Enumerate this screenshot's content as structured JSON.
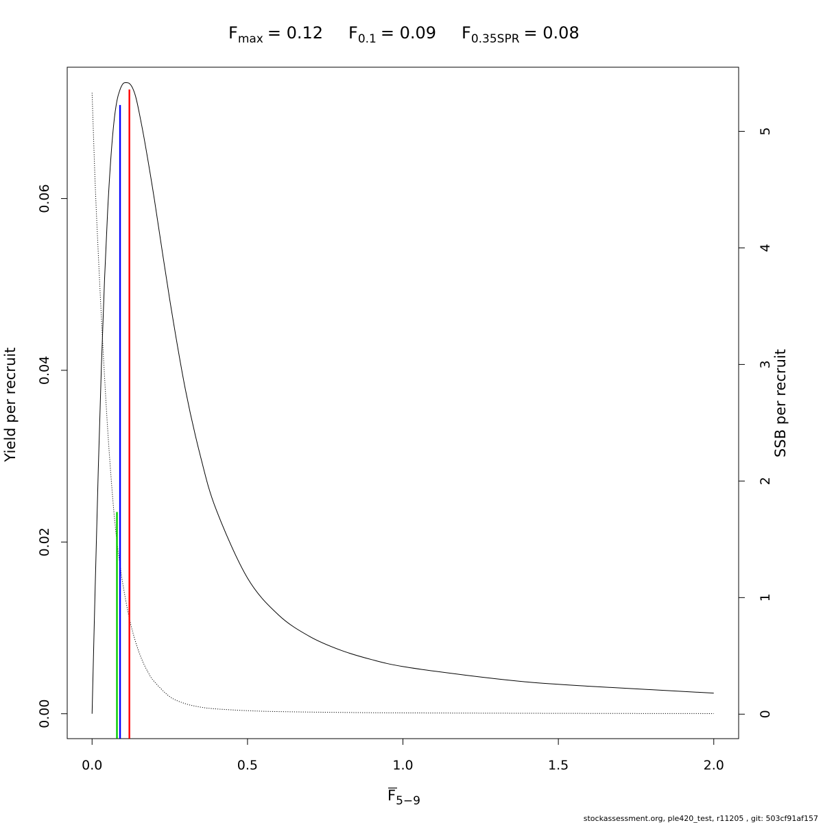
{
  "chart_data": {
    "type": "line",
    "title": {
      "fmax": {
        "base": "F",
        "sub": "max",
        "value": "= 0.12"
      },
      "f01": {
        "base": "F",
        "sub": "0.1",
        "value": "= 0.09"
      },
      "fspr": {
        "base": "F",
        "sub": "0.35SPR",
        "value": "= 0.08"
      }
    },
    "xlabel": {
      "base": "F",
      "sub": "5−9"
    },
    "ylabel_left": "Yield per recruit",
    "ylabel_right": "SSB per recruit",
    "xlim": [
      -0.08,
      2.08
    ],
    "ylim_left": [
      -0.0029,
      0.0753
    ],
    "ylim_right": [
      -0.21,
      5.55
    ],
    "x_ticks": [
      {
        "value": 0.0,
        "label": "0.0"
      },
      {
        "value": 0.5,
        "label": "0.5"
      },
      {
        "value": 1.0,
        "label": "1.0"
      },
      {
        "value": 1.5,
        "label": "1.5"
      },
      {
        "value": 2.0,
        "label": "2.0"
      }
    ],
    "y_left_ticks": [
      {
        "value": 0.0,
        "label": "0.00"
      },
      {
        "value": 0.02,
        "label": "0.02"
      },
      {
        "value": 0.04,
        "label": "0.04"
      },
      {
        "value": 0.06,
        "label": "0.06"
      }
    ],
    "y_right_ticks": [
      {
        "value": 0,
        "label": "0"
      },
      {
        "value": 1,
        "label": "1"
      },
      {
        "value": 2,
        "label": "2"
      },
      {
        "value": 3,
        "label": "3"
      },
      {
        "value": 4,
        "label": "4"
      },
      {
        "value": 5,
        "label": "5"
      }
    ],
    "series": [
      {
        "axis": "left",
        "style": "solid",
        "color": "#000000",
        "x": [
          0,
          0.01,
          0.02,
          0.03,
          0.04,
          0.05,
          0.06,
          0.07,
          0.08,
          0.09,
          0.1,
          0.11,
          0.12,
          0.13,
          0.14,
          0.15,
          0.17,
          0.2,
          0.25,
          0.3,
          0.35,
          0.4,
          0.5,
          0.6,
          0.7,
          0.8,
          0.9,
          1.0,
          1.2,
          1.4,
          1.6,
          1.8,
          2.0
        ],
        "y": [
          0.0,
          0.0148,
          0.0285,
          0.0405,
          0.0505,
          0.0585,
          0.0645,
          0.0688,
          0.0714,
          0.0727,
          0.0734,
          0.0735,
          0.0734,
          0.0729,
          0.0719,
          0.0703,
          0.0665,
          0.06,
          0.0482,
          0.0378,
          0.0298,
          0.0237,
          0.0158,
          0.0115,
          0.009,
          0.0074,
          0.0063,
          0.0055,
          0.0045,
          0.0037,
          0.0032,
          0.0028,
          0.0024
        ]
      },
      {
        "axis": "right",
        "style": "dotted",
        "color": "#000000",
        "x": [
          0,
          0.01,
          0.02,
          0.03,
          0.04,
          0.05,
          0.06,
          0.07,
          0.08,
          0.09,
          0.1,
          0.12,
          0.14,
          0.16,
          0.18,
          0.2,
          0.25,
          0.3,
          0.35,
          0.4,
          0.5,
          0.6,
          0.8,
          1.0,
          1.5,
          2.0
        ],
        "y": [
          5.33,
          4.55,
          3.95,
          3.4,
          2.9,
          2.45,
          2.07,
          1.74,
          1.48,
          1.28,
          1.1,
          0.82,
          0.62,
          0.47,
          0.36,
          0.28,
          0.15,
          0.09,
          0.06,
          0.045,
          0.03,
          0.022,
          0.015,
          0.011,
          0.007,
          0.005
        ]
      }
    ],
    "vlines": [
      {
        "name": "F0.35SPR",
        "x": 0.08,
        "y_top": 0.0235,
        "color": "#00cc00"
      },
      {
        "name": "F0.1",
        "x": 0.09,
        "y_top": 0.0709,
        "color": "#0000ff"
      },
      {
        "name": "Fmax",
        "x": 0.12,
        "y_top": 0.0727,
        "color": "#ff0000"
      }
    ],
    "grid": false,
    "legend": "none"
  },
  "footer_text": "stockassessment.org, ple420_test, r11205 , git: 503cf91af157"
}
